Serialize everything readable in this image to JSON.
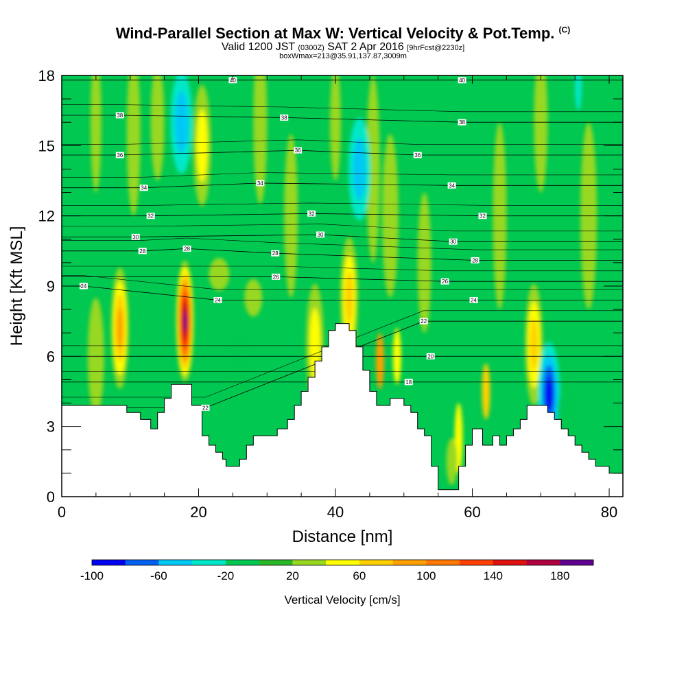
{
  "header": {
    "title": "Wind-Parallel Section at Max W: Vertical Velocity & Pot.Temp.",
    "copyright": "(C)",
    "valid_main": "Valid 1200 JST",
    "valid_utc": "(0300Z)",
    "valid_date": "SAT 2 Apr 2016",
    "forecast": "[9hrFcst@2230z]",
    "box_info": "boxWmax=213@35.91,137.87,3009m"
  },
  "chart_data": {
    "type": "heatmap",
    "xlabel": "Distance [nm]",
    "ylabel": "Height [Kft MSL]",
    "xlim": [
      0,
      82
    ],
    "ylim": [
      0,
      18
    ],
    "x_ticks": [
      0,
      20,
      40,
      60,
      80
    ],
    "y_ticks": [
      0,
      3,
      6,
      9,
      12,
      15,
      18
    ],
    "colorbar": {
      "label": "Vertical Velocity [cm/s]",
      "tick_labels": [
        "-100",
        "-60",
        "-20",
        "20",
        "60",
        "100",
        "140",
        "180"
      ],
      "tick_values": [
        -100,
        -60,
        -20,
        20,
        60,
        100,
        140,
        180
      ],
      "min": -100,
      "max": 200,
      "colors": [
        "#0000f0",
        "#0060f0",
        "#00c8f5",
        "#00e8c8",
        "#00c850",
        "#28b828",
        "#98d820",
        "#ffff00",
        "#ffd000",
        "#ffa000",
        "#ff7800",
        "#ff4000",
        "#e01010",
        "#b00040",
        "#600090"
      ]
    },
    "terrain": [
      [
        0,
        3.9
      ],
      [
        9.5,
        3.9
      ],
      [
        9.5,
        3.6
      ],
      [
        11.5,
        3.6
      ],
      [
        11.5,
        3.3
      ],
      [
        13,
        3.3
      ],
      [
        13,
        2.9
      ],
      [
        14,
        2.9
      ],
      [
        14,
        3.6
      ],
      [
        15,
        3.6
      ],
      [
        15,
        4.2
      ],
      [
        16,
        4.2
      ],
      [
        16,
        4.8
      ],
      [
        19,
        4.8
      ],
      [
        19,
        3.9
      ],
      [
        20.5,
        3.9
      ],
      [
        20.5,
        2.6
      ],
      [
        21.5,
        2.6
      ],
      [
        21.5,
        2.2
      ],
      [
        22.5,
        2.2
      ],
      [
        22.5,
        1.9
      ],
      [
        23.5,
        1.9
      ],
      [
        23.5,
        1.6
      ],
      [
        24,
        1.6
      ],
      [
        24,
        1.3
      ],
      [
        26,
        1.3
      ],
      [
        26,
        1.6
      ],
      [
        27,
        1.6
      ],
      [
        27,
        2.2
      ],
      [
        28,
        2.2
      ],
      [
        28,
        2.6
      ],
      [
        31.5,
        2.6
      ],
      [
        31.5,
        2.9
      ],
      [
        33,
        2.9
      ],
      [
        33,
        3.3
      ],
      [
        34,
        3.3
      ],
      [
        34,
        3.9
      ],
      [
        35,
        3.9
      ],
      [
        35,
        4.5
      ],
      [
        36,
        4.5
      ],
      [
        36,
        5.1
      ],
      [
        37,
        5.1
      ],
      [
        37,
        5.8
      ],
      [
        38,
        5.8
      ],
      [
        38,
        6.4
      ],
      [
        39,
        6.4
      ],
      [
        39,
        7.1
      ],
      [
        40,
        7.1
      ],
      [
        40,
        7.4
      ],
      [
        42,
        7.4
      ],
      [
        42,
        7.1
      ],
      [
        43,
        7.1
      ],
      [
        43,
        6.4
      ],
      [
        44,
        6.4
      ],
      [
        44,
        5.4
      ],
      [
        45,
        5.4
      ],
      [
        45,
        4.5
      ],
      [
        46,
        4.5
      ],
      [
        46,
        3.9
      ],
      [
        48,
        3.9
      ],
      [
        48,
        4.2
      ],
      [
        50,
        4.2
      ],
      [
        50,
        3.9
      ],
      [
        51,
        3.9
      ],
      [
        51,
        3.6
      ],
      [
        52,
        3.6
      ],
      [
        52,
        2.9
      ],
      [
        53,
        2.9
      ],
      [
        53,
        2.6
      ],
      [
        54,
        2.6
      ],
      [
        54,
        1.3
      ],
      [
        55,
        1.3
      ],
      [
        55,
        0.3
      ],
      [
        58,
        0.3
      ],
      [
        58,
        1.3
      ],
      [
        59,
        1.3
      ],
      [
        59,
        2.2
      ],
      [
        60,
        2.2
      ],
      [
        60,
        2.9
      ],
      [
        61.5,
        2.9
      ],
      [
        61.5,
        2.2
      ],
      [
        63,
        2.2
      ],
      [
        63,
        2.6
      ],
      [
        64,
        2.6
      ],
      [
        64,
        2.2
      ],
      [
        65,
        2.2
      ],
      [
        65,
        2.6
      ],
      [
        66,
        2.6
      ],
      [
        66,
        2.9
      ],
      [
        67,
        2.9
      ],
      [
        67,
        3.3
      ],
      [
        68,
        3.3
      ],
      [
        68,
        3.9
      ],
      [
        71,
        3.9
      ],
      [
        71,
        3.6
      ],
      [
        72,
        3.6
      ],
      [
        72,
        3.3
      ],
      [
        73,
        3.3
      ],
      [
        73,
        2.9
      ],
      [
        74,
        2.9
      ],
      [
        74,
        2.6
      ],
      [
        75,
        2.6
      ],
      [
        75,
        2.2
      ],
      [
        76,
        2.2
      ],
      [
        76,
        1.9
      ],
      [
        77,
        1.9
      ],
      [
        77,
        1.6
      ],
      [
        78,
        1.6
      ],
      [
        78,
        1.3
      ],
      [
        80,
        1.3
      ],
      [
        80,
        1.0
      ],
      [
        82,
        1.0
      ]
    ],
    "velocity_features": [
      {
        "type": "updraft",
        "x": 8.5,
        "y": 7.2,
        "max_cm_s": 100
      },
      {
        "type": "updraft",
        "x": 18,
        "y": 7.5,
        "max_cm_s": 200
      },
      {
        "type": "updraft",
        "x": 20.5,
        "y": 15,
        "max_cm_s": 60
      },
      {
        "type": "downdraft",
        "x": 17.5,
        "y": 16,
        "min_cm_s": -60
      },
      {
        "type": "downdraft",
        "x": 26,
        "y": 5.5,
        "min_cm_s": -20
      },
      {
        "type": "updraft",
        "x": 37,
        "y": 6.5,
        "max_cm_s": 60
      },
      {
        "type": "updraft",
        "x": 42,
        "y": 8.5,
        "max_cm_s": 80
      },
      {
        "type": "downdraft",
        "x": 43.5,
        "y": 14,
        "min_cm_s": -60
      },
      {
        "type": "updraft",
        "x": 69,
        "y": 6.5,
        "max_cm_s": 80
      },
      {
        "type": "downdraft",
        "x": 71.2,
        "y": 4.4,
        "min_cm_s": -100
      },
      {
        "type": "downdraft",
        "x": 74,
        "y": 3,
        "min_cm_s": -20
      }
    ],
    "theta_contour_labels": [
      {
        "text": "40",
        "x": 25,
        "y": 17.8
      },
      {
        "text": "40",
        "x": 58.5,
        "y": 17.8
      },
      {
        "text": "38",
        "x": 8.5,
        "y": 16.3
      },
      {
        "text": "38",
        "x": 32.5,
        "y": 16.2
      },
      {
        "text": "38",
        "x": 58.5,
        "y": 16.0
      },
      {
        "text": "36",
        "x": 8.5,
        "y": 14.6
      },
      {
        "text": "36",
        "x": 34.5,
        "y": 14.8
      },
      {
        "text": "36",
        "x": 52,
        "y": 14.6
      },
      {
        "text": "34",
        "x": 12,
        "y": 13.2
      },
      {
        "text": "34",
        "x": 29,
        "y": 13.4
      },
      {
        "text": "34",
        "x": 57,
        "y": 13.3
      },
      {
        "text": "32",
        "x": 13,
        "y": 12.0
      },
      {
        "text": "32",
        "x": 36.5,
        "y": 12.1
      },
      {
        "text": "32",
        "x": 61.5,
        "y": 12.0
      },
      {
        "text": "30",
        "x": 10.8,
        "y": 11.1
      },
      {
        "text": "30",
        "x": 37.8,
        "y": 11.2
      },
      {
        "text": "30",
        "x": 57.2,
        "y": 10.9
      },
      {
        "text": "28",
        "x": 11.8,
        "y": 10.5
      },
      {
        "text": "28",
        "x": 18.3,
        "y": 10.6
      },
      {
        "text": "28",
        "x": 31.2,
        "y": 10.4
      },
      {
        "text": "28",
        "x": 60.4,
        "y": 10.1
      },
      {
        "text": "26",
        "x": 31.3,
        "y": 9.4
      },
      {
        "text": "26",
        "x": 56,
        "y": 9.2
      },
      {
        "text": "24",
        "x": 3.2,
        "y": 9.0
      },
      {
        "text": "24",
        "x": 22.8,
        "y": 8.4
      },
      {
        "text": "24",
        "x": 60.2,
        "y": 8.4
      },
      {
        "text": "22",
        "x": 52.9,
        "y": 7.5
      },
      {
        "text": "22",
        "x": 21.0,
        "y": 3.8
      },
      {
        "text": "20",
        "x": 53.9,
        "y": 6.0
      },
      {
        "text": "18",
        "x": 50.7,
        "y": 4.9
      }
    ]
  }
}
